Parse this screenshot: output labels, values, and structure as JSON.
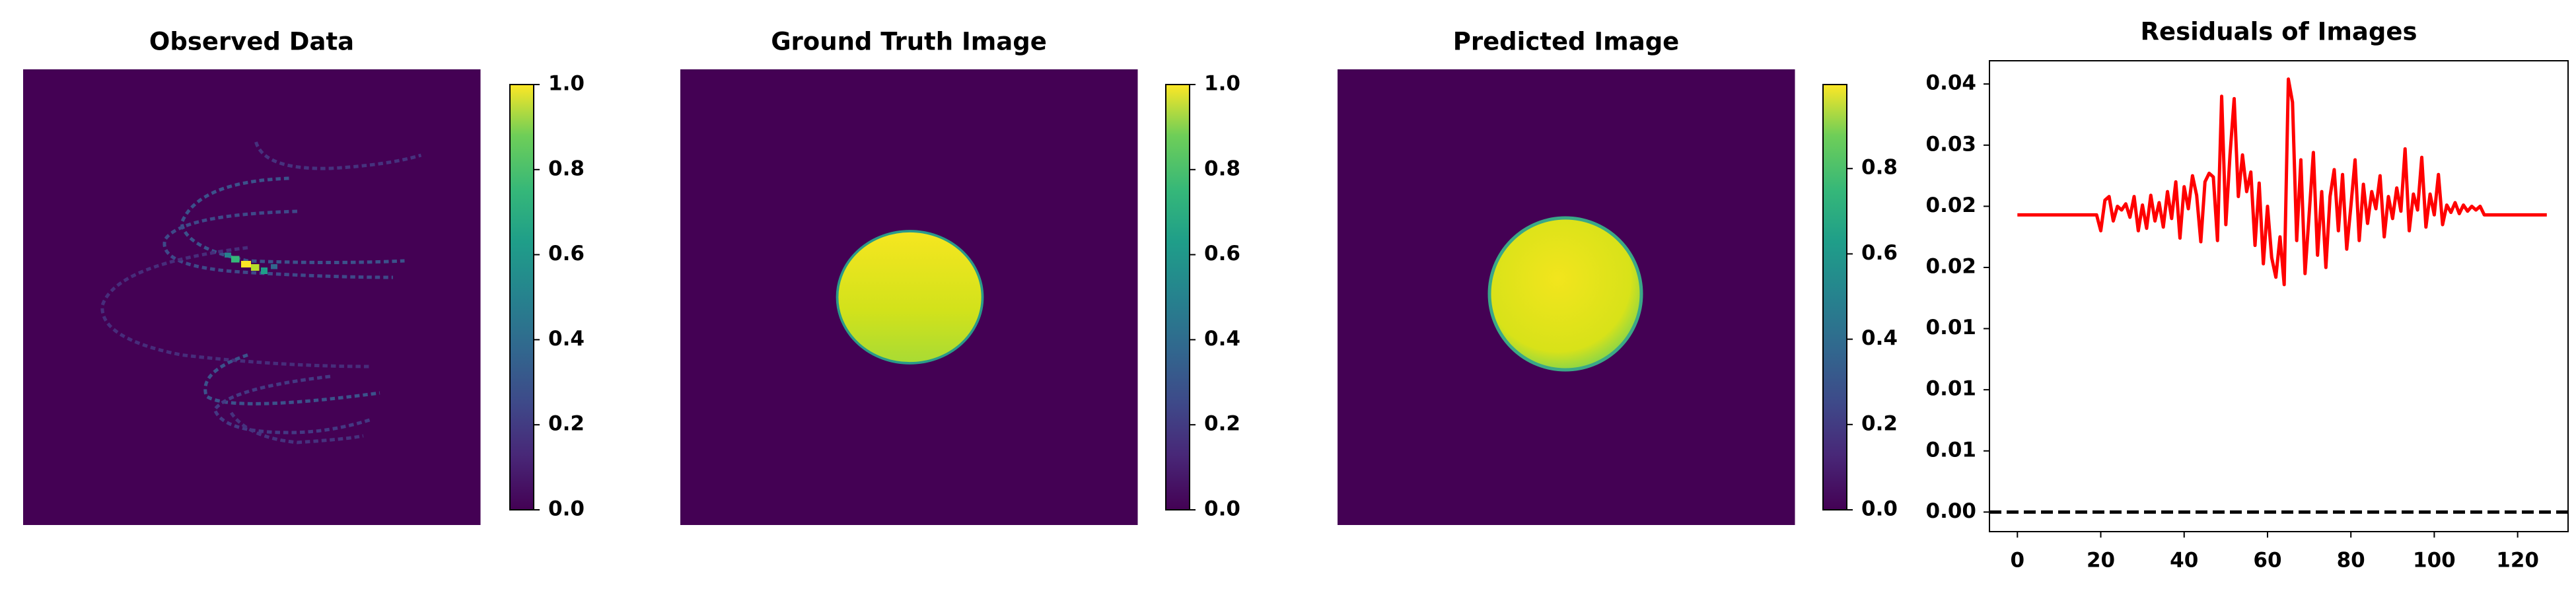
{
  "chart_data": [
    {
      "type": "heatmap",
      "title": "Observed Data",
      "colorbar": {
        "lim": [
          0,
          1
        ],
        "ticks": [
          {
            "value": 0,
            "label": "0.0"
          },
          0.2,
          0.4,
          0.6,
          0.8,
          {
            "value": 1,
            "label": "1.0"
          }
        ]
      }
    },
    {
      "type": "heatmap",
      "title": "Ground Truth Image",
      "colorbar": {
        "lim": [
          0,
          1
        ],
        "ticks": [
          {
            "value": 0,
            "label": "0.0"
          },
          0.2,
          0.4,
          0.6,
          0.8,
          {
            "value": 1,
            "label": "1.0"
          }
        ]
      }
    },
    {
      "type": "heatmap",
      "title": "Predicted Image",
      "colorbar": {
        "lim": [
          0,
          0.997
        ],
        "ticks": [
          {
            "value": 0,
            "label": "0.0"
          },
          0.2,
          0.4,
          0.6,
          0.8
        ]
      }
    },
    {
      "type": "line",
      "title": "Residuals of Images",
      "color": "#ff0000",
      "x": [
        0,
        1,
        2,
        3,
        4,
        5,
        6,
        7,
        8,
        9,
        10,
        11,
        12,
        13,
        14,
        15,
        16,
        17,
        18,
        19,
        20,
        21,
        22,
        23,
        24,
        25,
        26,
        27,
        28,
        29,
        30,
        31,
        32,
        33,
        34,
        35,
        36,
        37,
        38,
        39,
        40,
        41,
        42,
        43,
        44,
        45,
        46,
        47,
        48,
        49,
        50,
        51,
        52,
        53,
        54,
        55,
        56,
        57,
        58,
        59,
        60,
        61,
        62,
        63,
        64,
        65,
        66,
        67,
        68,
        69,
        70,
        71,
        72,
        73,
        74,
        75,
        76,
        77,
        78,
        79,
        80,
        81,
        82,
        83,
        84,
        85,
        86,
        87,
        88,
        89,
        90,
        91,
        92,
        93,
        94,
        95,
        96,
        97,
        98,
        99,
        100,
        101,
        102,
        103,
        104,
        105,
        106,
        107,
        108,
        109,
        110,
        111,
        112,
        113,
        114,
        115,
        116,
        117,
        118,
        119,
        120,
        121,
        122,
        123,
        124,
        125,
        126,
        127
      ],
      "values": [
        0.0243,
        0.0243,
        0.0243,
        0.0243,
        0.0243,
        0.0243,
        0.0243,
        0.0243,
        0.0243,
        0.0243,
        0.0243,
        0.0243,
        0.0243,
        0.0243,
        0.0243,
        0.0243,
        0.0243,
        0.0243,
        0.0243,
        0.0243,
        0.023,
        0.0255,
        0.0258,
        0.0238,
        0.025,
        0.0247,
        0.0252,
        0.0241,
        0.0258,
        0.023,
        0.0251,
        0.0232,
        0.0259,
        0.0238,
        0.0253,
        0.0233,
        0.0262,
        0.024,
        0.027,
        0.0224,
        0.0266,
        0.0248,
        0.0275,
        0.0259,
        0.0221,
        0.027,
        0.0277,
        0.0274,
        0.0222,
        0.034,
        0.0235,
        0.0292,
        0.0338,
        0.0258,
        0.0292,
        0.0262,
        0.0278,
        0.0218,
        0.0269,
        0.0203,
        0.025,
        0.0208,
        0.0192,
        0.0225,
        0.0186,
        0.0354,
        0.0335,
        0.0222,
        0.0288,
        0.0195,
        0.0244,
        0.0294,
        0.021,
        0.0262,
        0.02,
        0.0258,
        0.028,
        0.023,
        0.0276,
        0.0215,
        0.025,
        0.0288,
        0.0222,
        0.0268,
        0.0236,
        0.0262,
        0.0248,
        0.0275,
        0.0225,
        0.0258,
        0.024,
        0.0265,
        0.0246,
        0.0297,
        0.023,
        0.026,
        0.0247,
        0.029,
        0.0233,
        0.026,
        0.0243,
        0.0276,
        0.0235,
        0.0251,
        0.0245,
        0.0253,
        0.0244,
        0.0251,
        0.0246,
        0.025,
        0.0247,
        0.025,
        0.0243,
        0.0243,
        0.0243,
        0.0243,
        0.0243,
        0.0243,
        0.0243,
        0.0243,
        0.0243,
        0.0243,
        0.0243,
        0.0243,
        0.0243,
        0.0243,
        0.0243,
        0.0243
      ],
      "xlim": [
        -6.7,
        132.1
      ],
      "xticks": [
        0,
        20,
        40,
        60,
        80,
        100,
        120
      ],
      "ylim": [
        -0.0016,
        0.0369
      ],
      "yticks": [
        {
          "value": 0,
          "label": "0.00"
        },
        {
          "value": 0.005,
          "label": "0.01"
        },
        {
          "value": 0.01,
          "label": "0.01"
        },
        {
          "value": 0.015,
          "label": "0.01"
        },
        {
          "value": 0.02,
          "label": "0.02"
        },
        {
          "value": 0.025,
          "label": "0.02"
        },
        {
          "value": 0.03,
          "label": "0.03"
        },
        {
          "value": 0.035,
          "label": "0.04"
        }
      ],
      "reference_line": {
        "value": 0,
        "color": "#000000",
        "dashed": true
      }
    }
  ]
}
